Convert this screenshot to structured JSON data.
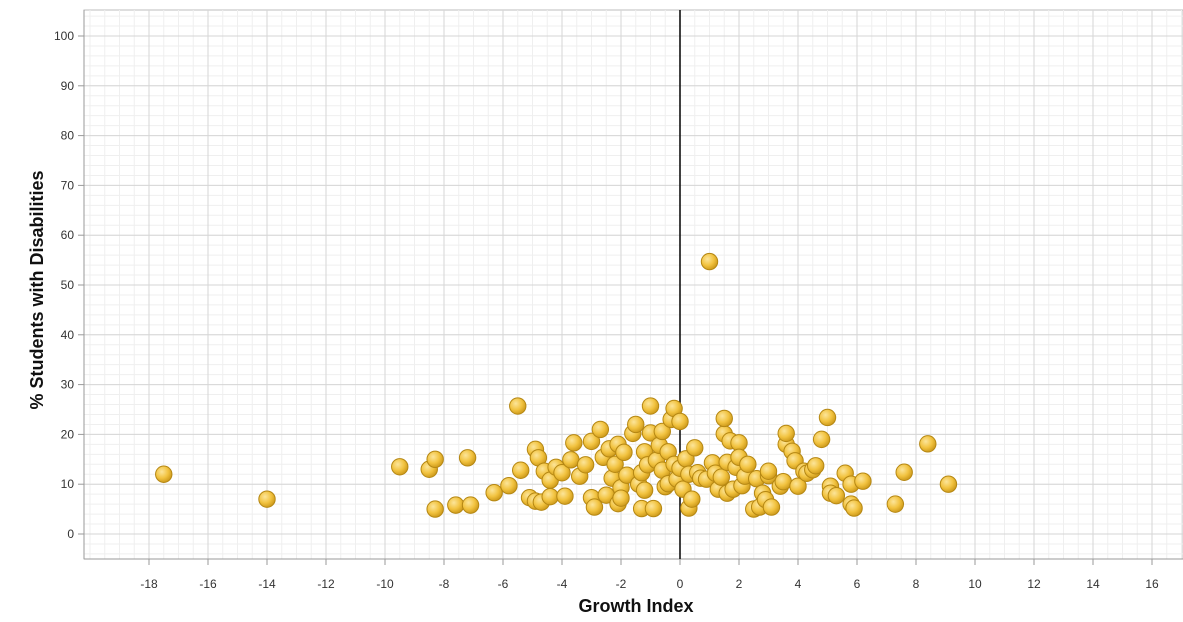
{
  "chart_data": {
    "type": "scatter",
    "title": "",
    "xlabel": "Growth Index",
    "ylabel": "% Students with Disabilities",
    "xlim": [
      -20,
      17
    ],
    "ylim": [
      -5,
      105
    ],
    "x_ticks": [
      -18,
      -16,
      -14,
      -12,
      -10,
      -8,
      -6,
      -4,
      -2,
      0,
      2,
      4,
      6,
      8,
      10,
      12,
      14,
      16
    ],
    "y_ticks": [
      0,
      10,
      20,
      30,
      40,
      50,
      60,
      70,
      80,
      90,
      100
    ],
    "grid": true,
    "reference_line_x": 0,
    "series": [
      {
        "color": "#f2c340",
        "points": [
          [
            -17.5,
            12.0
          ],
          [
            -14.0,
            7.0
          ],
          [
            -9.5,
            13.5
          ],
          [
            -8.5,
            13.0
          ],
          [
            -8.3,
            15.0
          ],
          [
            -8.3,
            5.0
          ],
          [
            -7.6,
            5.8
          ],
          [
            -7.2,
            15.3
          ],
          [
            -7.1,
            5.8
          ],
          [
            -6.3,
            8.3
          ],
          [
            -5.8,
            9.7
          ],
          [
            -5.5,
            25.7
          ],
          [
            -5.4,
            12.8
          ],
          [
            -5.1,
            7.3
          ],
          [
            -4.9,
            17.0
          ],
          [
            -4.9,
            6.6
          ],
          [
            -4.8,
            15.3
          ],
          [
            -4.7,
            6.4
          ],
          [
            -4.6,
            12.6
          ],
          [
            -4.4,
            10.8
          ],
          [
            -4.4,
            7.5
          ],
          [
            -4.2,
            13.4
          ],
          [
            -4.0,
            12.3
          ],
          [
            -3.9,
            7.6
          ],
          [
            -3.7,
            14.9
          ],
          [
            -3.6,
            18.3
          ],
          [
            -3.4,
            11.6
          ],
          [
            -3.2,
            13.9
          ],
          [
            -3.0,
            18.6
          ],
          [
            -3.0,
            7.3
          ],
          [
            -2.9,
            5.4
          ],
          [
            -2.7,
            21.0
          ],
          [
            -2.6,
            15.4
          ],
          [
            -2.5,
            7.8
          ],
          [
            -2.4,
            17.1
          ],
          [
            -2.3,
            11.2
          ],
          [
            -2.2,
            14.0
          ],
          [
            -2.1,
            6.1
          ],
          [
            -2.1,
            18.0
          ],
          [
            -2.0,
            9.3
          ],
          [
            -2.0,
            7.2
          ],
          [
            -1.9,
            16.4
          ],
          [
            -1.8,
            11.8
          ],
          [
            -1.6,
            20.2
          ],
          [
            -1.5,
            22.0
          ],
          [
            -1.4,
            10.0
          ],
          [
            -1.3,
            5.1
          ],
          [
            -1.3,
            12.3
          ],
          [
            -1.2,
            16.5
          ],
          [
            -1.2,
            8.8
          ],
          [
            -1.1,
            13.9
          ],
          [
            -1.0,
            20.3
          ],
          [
            -1.0,
            25.7
          ],
          [
            -0.9,
            5.1
          ],
          [
            -0.8,
            14.8
          ],
          [
            -0.7,
            17.8
          ],
          [
            -0.6,
            12.8
          ],
          [
            -0.6,
            20.6
          ],
          [
            -0.5,
            9.5
          ],
          [
            -0.4,
            10.1
          ],
          [
            -0.4,
            16.5
          ],
          [
            -0.3,
            23.0
          ],
          [
            -0.2,
            14.0
          ],
          [
            -0.2,
            25.2
          ],
          [
            -0.1,
            11.0
          ],
          [
            0.0,
            22.6
          ],
          [
            0.0,
            13.2
          ],
          [
            0.1,
            9.0
          ],
          [
            0.2,
            15.1
          ],
          [
            0.3,
            12.0
          ],
          [
            0.3,
            5.2
          ],
          [
            0.4,
            7.0
          ],
          [
            0.5,
            17.3
          ],
          [
            0.6,
            12.3
          ],
          [
            0.7,
            11.2
          ],
          [
            0.9,
            11.0
          ],
          [
            1.0,
            54.7
          ],
          [
            1.1,
            14.3
          ],
          [
            1.2,
            12.2
          ],
          [
            1.3,
            9.0
          ],
          [
            1.4,
            11.4
          ],
          [
            1.5,
            20.1
          ],
          [
            1.5,
            23.2
          ],
          [
            1.6,
            8.2
          ],
          [
            1.6,
            14.4
          ],
          [
            1.7,
            18.7
          ],
          [
            1.8,
            9.0
          ],
          [
            1.9,
            13.4
          ],
          [
            2.0,
            18.3
          ],
          [
            2.0,
            15.4
          ],
          [
            2.1,
            9.7
          ],
          [
            2.2,
            11.6
          ],
          [
            2.3,
            14.0
          ],
          [
            2.5,
            5.0
          ],
          [
            2.6,
            11.1
          ],
          [
            2.7,
            5.4
          ],
          [
            2.8,
            8.2
          ],
          [
            2.9,
            6.9
          ],
          [
            3.0,
            11.7
          ],
          [
            3.0,
            12.6
          ],
          [
            3.1,
            5.4
          ],
          [
            3.4,
            9.6
          ],
          [
            3.5,
            10.5
          ],
          [
            3.6,
            18.0
          ],
          [
            3.6,
            20.2
          ],
          [
            3.8,
            16.6
          ],
          [
            3.9,
            14.7
          ],
          [
            4.0,
            9.6
          ],
          [
            4.2,
            12.6
          ],
          [
            4.3,
            12.2
          ],
          [
            4.5,
            12.9
          ],
          [
            4.6,
            13.7
          ],
          [
            4.8,
            19.0
          ],
          [
            5.0,
            23.4
          ],
          [
            5.1,
            9.6
          ],
          [
            5.1,
            8.2
          ],
          [
            5.3,
            7.7
          ],
          [
            5.6,
            12.2
          ],
          [
            5.8,
            6.0
          ],
          [
            5.8,
            10.0
          ],
          [
            5.9,
            5.2
          ],
          [
            6.2,
            10.6
          ],
          [
            7.3,
            6.0
          ],
          [
            7.6,
            12.4
          ],
          [
            8.4,
            18.1
          ],
          [
            9.1,
            10.0
          ]
        ]
      }
    ]
  }
}
